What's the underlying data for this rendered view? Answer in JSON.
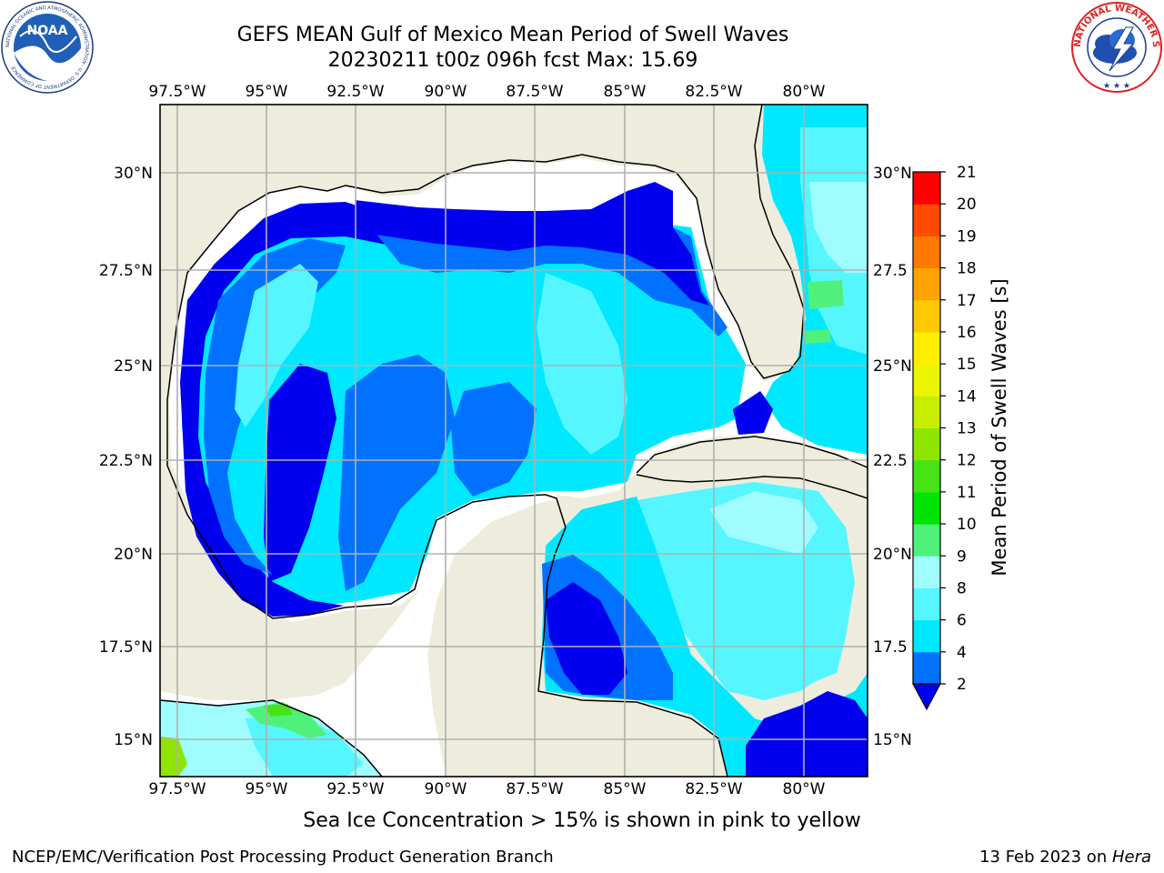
{
  "header": {
    "title_line1": "GEFS MEAN Gulf of Mexico Mean Period of Swell Waves",
    "title_line2": "20230211 t00z 096h fcst   Max: 15.69"
  },
  "logos": {
    "left": "NOAA",
    "left_ring_text": "NATIONAL OCEANIC AND ATMOSPHERIC ADMINISTRATION · U.S. DEPARTMENT OF COMMERCE",
    "right_ring_text": "NATIONAL WEATHER SERVICE"
  },
  "map": {
    "lon_labels": [
      "97.5°W",
      "95°W",
      "92.5°W",
      "90°W",
      "87.5°W",
      "85°W",
      "82.5°W",
      "80°W"
    ],
    "lat_labels_left": [
      "30°N",
      "27.5°N",
      "25°N",
      "22.5°N",
      "20°N",
      "17.5°N",
      "15°N"
    ],
    "lat_labels_right": [
      "30°N",
      "27.5",
      "25°N",
      "22.5",
      "20°N",
      "17.5",
      "15°N"
    ],
    "colors": {
      "land": "#eeeddd",
      "no_data": "#ffffff",
      "grid": "#b0b0b0",
      "coast": "#000000"
    }
  },
  "colorbar": {
    "label": "Mean Period of Swell Waves [s]",
    "ticks": [
      "2",
      "4",
      "6",
      "8",
      "9",
      "10",
      "11",
      "12",
      "13",
      "14",
      "15",
      "16",
      "17",
      "18",
      "19",
      "20",
      "21"
    ],
    "colors": [
      "#0000ee",
      "#0072ff",
      "#00e8ff",
      "#55f6ff",
      "#9ffcff",
      "#50f17a",
      "#00e400",
      "#46e416",
      "#8ee600",
      "#c7ee00",
      "#ebf500",
      "#ffee00",
      "#ffc800",
      "#ffa300",
      "#ff7800",
      "#ff4a00",
      "#ff0000"
    ]
  },
  "footer": {
    "note": "Sea Ice Concentration > 15% is shown in pink to yellow",
    "credit": "NCEP/EMC/Verification Post Processing Product Generation Branch",
    "date_prefix": "13 Feb 2023 on ",
    "host": "Hera"
  }
}
